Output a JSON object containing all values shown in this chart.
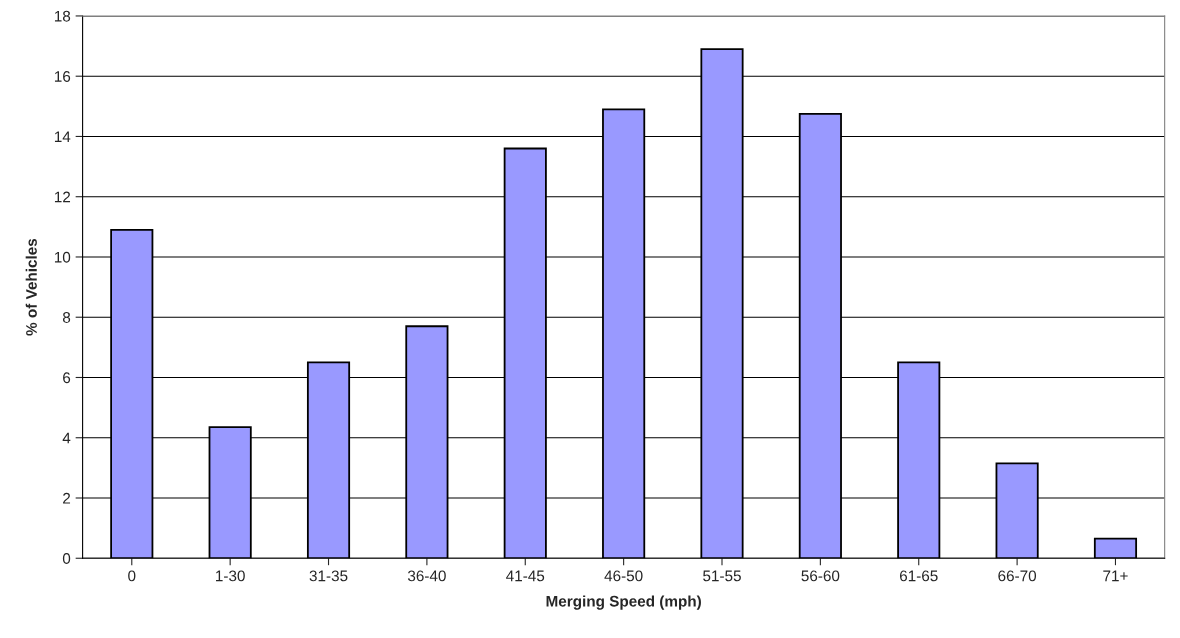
{
  "chart_data": {
    "type": "bar",
    "xlabel": "Merging Speed (mph)",
    "ylabel": "% of Vehicles",
    "categories": [
      "0",
      "1-30",
      "31-35",
      "36-40",
      "41-45",
      "46-50",
      "51-55",
      "56-60",
      "61-65",
      "66-70",
      "71+"
    ],
    "values": [
      10.9,
      4.35,
      6.5,
      7.7,
      13.6,
      14.9,
      16.9,
      14.75,
      6.5,
      3.15,
      0.65
    ],
    "color": "#9999ff",
    "ylim": [
      0,
      18
    ],
    "yticks": [
      0,
      2,
      4,
      6,
      8,
      10,
      12,
      14,
      16,
      18
    ],
    "grid": "y",
    "legend": false
  }
}
